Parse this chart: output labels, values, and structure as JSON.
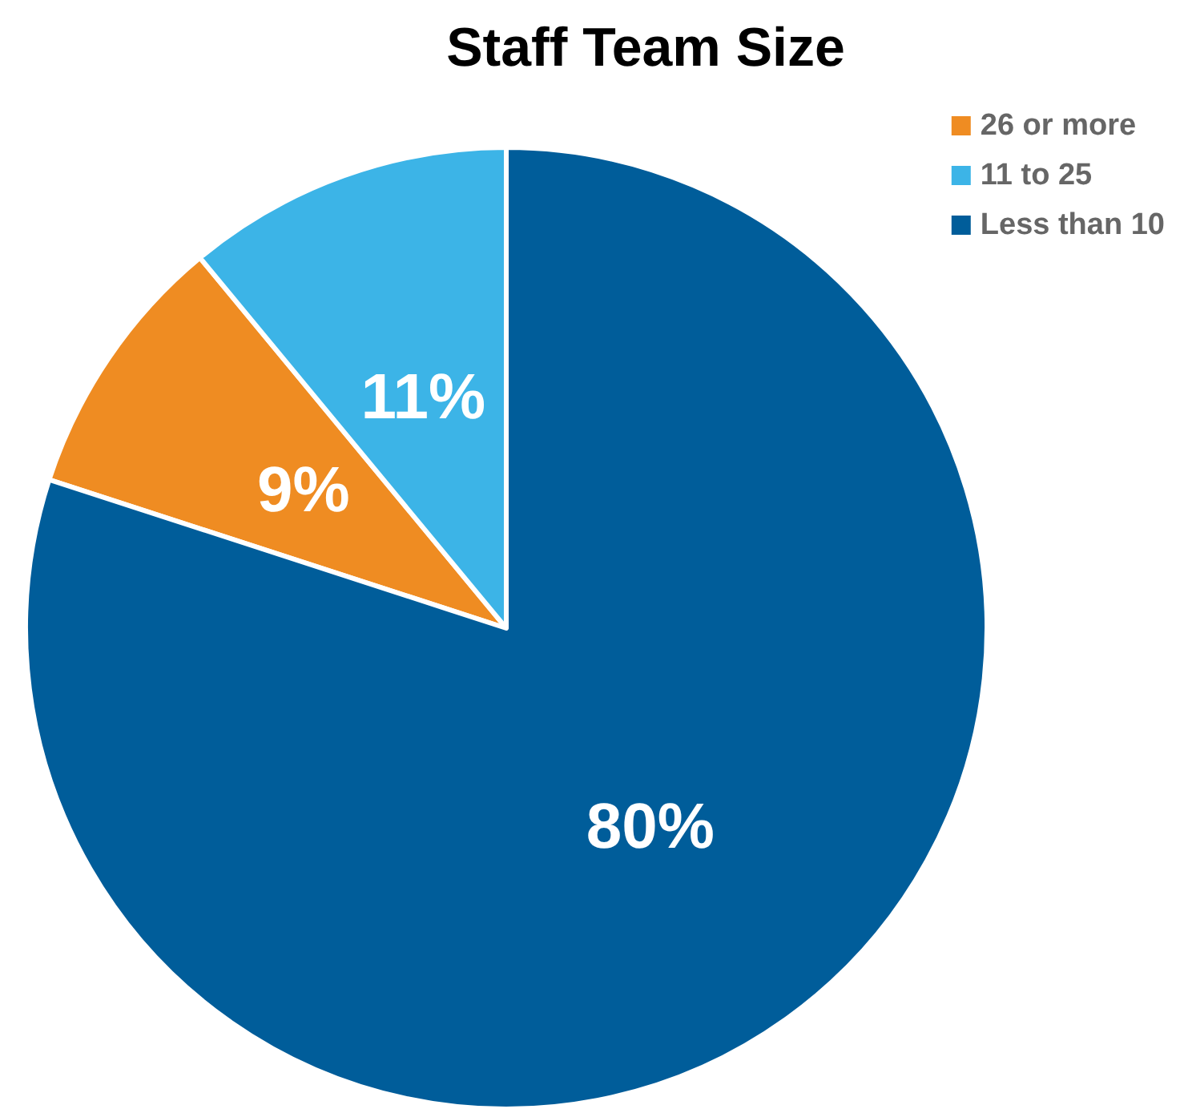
{
  "chart_data": {
    "type": "pie",
    "title": "Staff Team Size",
    "categories": [
      "26 or more",
      "11 to 25",
      "Less than 10"
    ],
    "values": [
      9,
      11,
      80
    ],
    "colors": [
      "#ef8c22",
      "#3cb4e7",
      "#005d9a"
    ],
    "value_labels": [
      "9%",
      "11%",
      "80%"
    ],
    "legend": "top right"
  }
}
